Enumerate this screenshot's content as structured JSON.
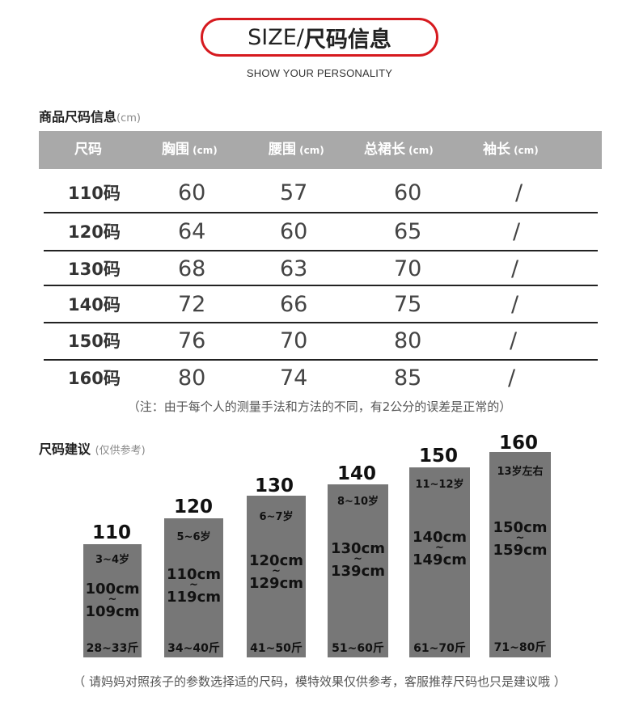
{
  "header": {
    "title_en": "SIZE/",
    "title_cn": "尺码信息",
    "subtitle": "SHOW YOUR PERSONALITY"
  },
  "table_section": {
    "title": "商品尺码信息",
    "unit": "(cm)"
  },
  "table": {
    "headers": [
      {
        "label": "尺码",
        "unit": ""
      },
      {
        "label": "胸围",
        "unit": " (cm)"
      },
      {
        "label": "腰围",
        "unit": " (cm)"
      },
      {
        "label": "总裙长",
        "unit": " (cm)"
      },
      {
        "label": "袖长",
        "unit": " (cm)"
      }
    ],
    "rows": [
      [
        "110码",
        "60",
        "57",
        "60",
        "/"
      ],
      [
        "120码",
        "64",
        "60",
        "65",
        "/"
      ],
      [
        "130码",
        "68",
        "63",
        "70",
        "/"
      ],
      [
        "140码",
        "72",
        "66",
        "75",
        "/"
      ],
      [
        "150码",
        "76",
        "70",
        "80",
        "/"
      ],
      [
        "160码",
        "80",
        "74",
        "85",
        "/"
      ]
    ]
  },
  "table_note": "（注：由于每个人的测量手法和方法的不同，有2公分的误差是正常的）",
  "suggest_section": {
    "title": "尺码建议",
    "unit": "(仅供参考)"
  },
  "suggestions": [
    {
      "size": "110",
      "age": "3~4岁",
      "height_from": "100cm",
      "height_to": "109cm",
      "weight": "28~33斤"
    },
    {
      "size": "120",
      "age": "5~6岁",
      "height_from": "110cm",
      "height_to": "119cm",
      "weight": "34~40斤"
    },
    {
      "size": "130",
      "age": "6~7岁",
      "height_from": "120cm",
      "height_to": "129cm",
      "weight": "41~50斤"
    },
    {
      "size": "140",
      "age": "8~10岁",
      "height_from": "130cm",
      "height_to": "139cm",
      "weight": "51~60斤"
    },
    {
      "size": "150",
      "age": "11~12岁",
      "height_from": "140cm",
      "height_to": "149cm",
      "weight": "61~70斤"
    },
    {
      "size": "160",
      "age": "13岁左右",
      "height_from": "150cm",
      "height_to": "159cm",
      "weight": "71~80斤"
    }
  ],
  "tilde": "~",
  "footer": "（ 请妈妈对照孩子的参数选择适的尺码，模特效果仅供参考，客服推荐尺码也只是建议哦 ）",
  "colors": {
    "accent": "#d61a1f",
    "header_bg": "#a9a9a9",
    "bar": "#777777"
  }
}
